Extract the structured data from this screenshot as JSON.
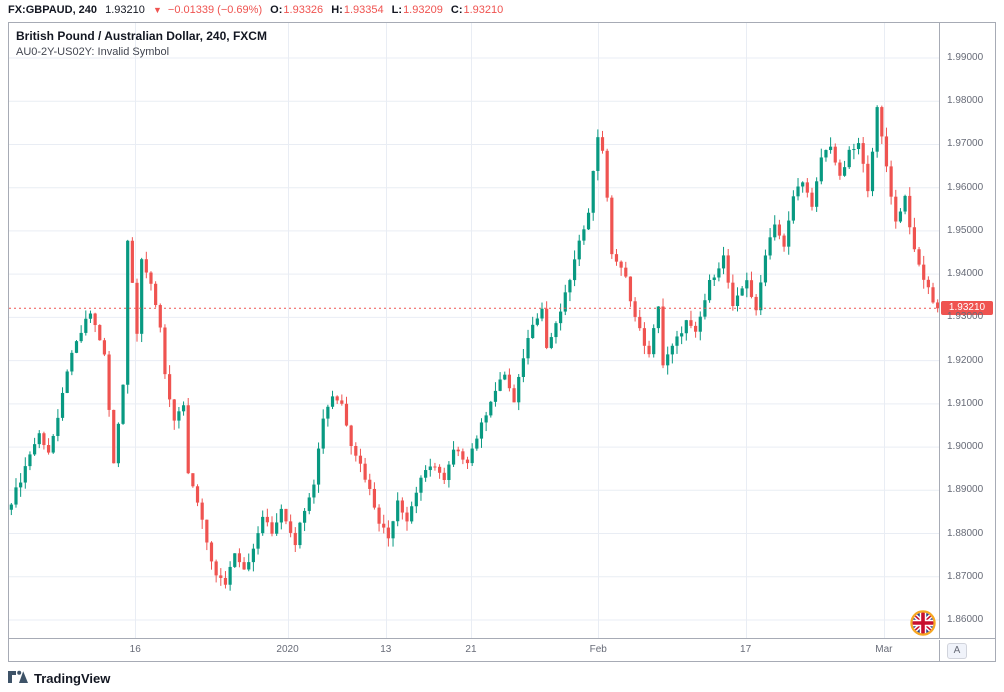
{
  "header": {
    "symbol": "FX:GBPAUD, 240",
    "last_price": "1.93210",
    "direction": "▼",
    "change": "−0.01339 (−0.69%)",
    "open_label": "O:",
    "open": "1.93326",
    "high_label": "H:",
    "high": "1.93354",
    "low_label": "L:",
    "low": "1.93209",
    "close_label": "C:",
    "close": "1.93210"
  },
  "legend": {
    "title": "British Pound / Australian Dollar, 240, FXCM",
    "subtitle": "AU0-2Y-US02Y: Invalid Symbol"
  },
  "price_axis": {
    "ticks": [
      "1.99000",
      "1.98000",
      "1.97000",
      "1.96000",
      "1.95000",
      "1.94000",
      "1.93000",
      "1.92000",
      "1.91000",
      "1.90000",
      "1.89000",
      "1.88000",
      "1.87000",
      "1.86000"
    ],
    "tag": "1.93210"
  },
  "misc": {
    "auto_scale_label": "A"
  },
  "footer": {
    "brand": "TradingView"
  },
  "icons": {
    "direction_down": "▼",
    "uk-flag-icon": "union-jack-in-orange-ring",
    "tradingview-logo-icon": "mountain-cloud-logo"
  },
  "colors": {
    "up": "#089981",
    "down": "#ef5350",
    "grid": "#e9edf4",
    "frame": "#a7abb5",
    "text_dark": "#131722",
    "text_gray": "#676b77",
    "tag_bg": "#ef5350"
  },
  "chart_data": {
    "type": "candlestick",
    "title": "British Pound / Australian Dollar",
    "symbol": "GBPAUD",
    "exchange": "FXCM",
    "interval_minutes": 240,
    "last_price": 1.9321,
    "last_bar": {
      "open": 1.93326,
      "high": 1.93354,
      "low": 1.93209,
      "close": 1.9321
    },
    "up_color": "#089981",
    "down_color": "#ef5350",
    "grid": true,
    "y_top_price": 1.9981,
    "y_bottom_price": 1.8556,
    "y_ticks": [
      1.99,
      1.98,
      1.97,
      1.96,
      1.95,
      1.94,
      1.93,
      1.92,
      1.91,
      1.9,
      1.89,
      1.88,
      1.87,
      1.86
    ],
    "x_ticks": [
      {
        "label": "16",
        "pos": 0.1356
      },
      {
        "label": "2020",
        "pos": 0.2992
      },
      {
        "label": "13",
        "pos": 0.4047
      },
      {
        "label": "21",
        "pos": 0.4962
      },
      {
        "label": "Feb",
        "pos": 0.6329
      },
      {
        "label": "17",
        "pos": 0.7912
      },
      {
        "label": "Mar",
        "pos": 0.9397
      }
    ],
    "num_candles": 200,
    "price_path": [
      [
        0,
        1.8875
      ],
      [
        2,
        1.8925
      ],
      [
        4,
        1.8985
      ],
      [
        6,
        1.903
      ],
      [
        8,
        1.899
      ],
      [
        10,
        1.906
      ],
      [
        12,
        1.918
      ],
      [
        14,
        1.924
      ],
      [
        16,
        1.929
      ],
      [
        17,
        1.931
      ],
      [
        19,
        1.925
      ],
      [
        20,
        1.921
      ],
      [
        22,
        1.896
      ],
      [
        24,
        1.915
      ],
      [
        25,
        1.948
      ],
      [
        26,
        1.938
      ],
      [
        27,
        1.927
      ],
      [
        28,
        1.944
      ],
      [
        30,
        1.937
      ],
      [
        32,
        1.928
      ],
      [
        33,
        1.917
      ],
      [
        35,
        1.906
      ],
      [
        37,
        1.909
      ],
      [
        38,
        1.894
      ],
      [
        40,
        1.887
      ],
      [
        42,
        1.878
      ],
      [
        44,
        1.87
      ],
      [
        46,
        1.8685
      ],
      [
        48,
        1.876
      ],
      [
        50,
        1.872
      ],
      [
        52,
        1.876
      ],
      [
        54,
        1.884
      ],
      [
        56,
        1.88
      ],
      [
        58,
        1.886
      ],
      [
        61,
        1.878
      ],
      [
        63,
        1.886
      ],
      [
        65,
        1.892
      ],
      [
        67,
        1.907
      ],
      [
        69,
        1.912
      ],
      [
        71,
        1.91
      ],
      [
        73,
        1.901
      ],
      [
        75,
        1.896
      ],
      [
        77,
        1.89
      ],
      [
        79,
        1.883
      ],
      [
        81,
        1.879
      ],
      [
        83,
        1.888
      ],
      [
        85,
        1.883
      ],
      [
        88,
        1.893
      ],
      [
        91,
        1.896
      ],
      [
        93,
        1.892
      ],
      [
        95,
        1.899
      ],
      [
        98,
        1.897
      ],
      [
        101,
        1.905
      ],
      [
        103,
        1.911
      ],
      [
        106,
        1.917
      ],
      [
        108,
        1.91
      ],
      [
        110,
        1.921
      ],
      [
        112,
        1.929
      ],
      [
        114,
        1.932
      ],
      [
        115,
        1.923
      ],
      [
        117,
        1.928
      ],
      [
        119,
        1.935
      ],
      [
        121,
        1.943
      ],
      [
        124,
        1.955
      ],
      [
        126,
        1.972
      ],
      [
        127,
        1.969
      ],
      [
        129,
        1.945
      ],
      [
        132,
        1.939
      ],
      [
        134,
        1.93
      ],
      [
        136,
        1.924
      ],
      [
        137,
        1.921
      ],
      [
        139,
        1.933
      ],
      [
        140,
        1.919
      ],
      [
        142,
        1.923
      ],
      [
        145,
        1.929
      ],
      [
        147,
        1.926
      ],
      [
        150,
        1.938
      ],
      [
        153,
        1.944
      ],
      [
        155,
        1.932
      ],
      [
        158,
        1.939
      ],
      [
        160,
        1.931
      ],
      [
        162,
        1.945
      ],
      [
        164,
        1.952
      ],
      [
        166,
        1.946
      ],
      [
        168,
        1.958
      ],
      [
        170,
        1.962
      ],
      [
        172,
        1.955
      ],
      [
        174,
        1.967
      ],
      [
        176,
        1.97
      ],
      [
        178,
        1.962
      ],
      [
        180,
        1.968
      ],
      [
        182,
        1.97
      ],
      [
        184,
        1.96
      ],
      [
        186,
        1.978
      ],
      [
        188,
        1.965
      ],
      [
        190,
        1.952
      ],
      [
        192,
        1.958
      ],
      [
        194,
        1.945
      ],
      [
        196,
        1.939
      ],
      [
        198,
        1.934
      ],
      [
        199,
        1.9321
      ]
    ]
  }
}
